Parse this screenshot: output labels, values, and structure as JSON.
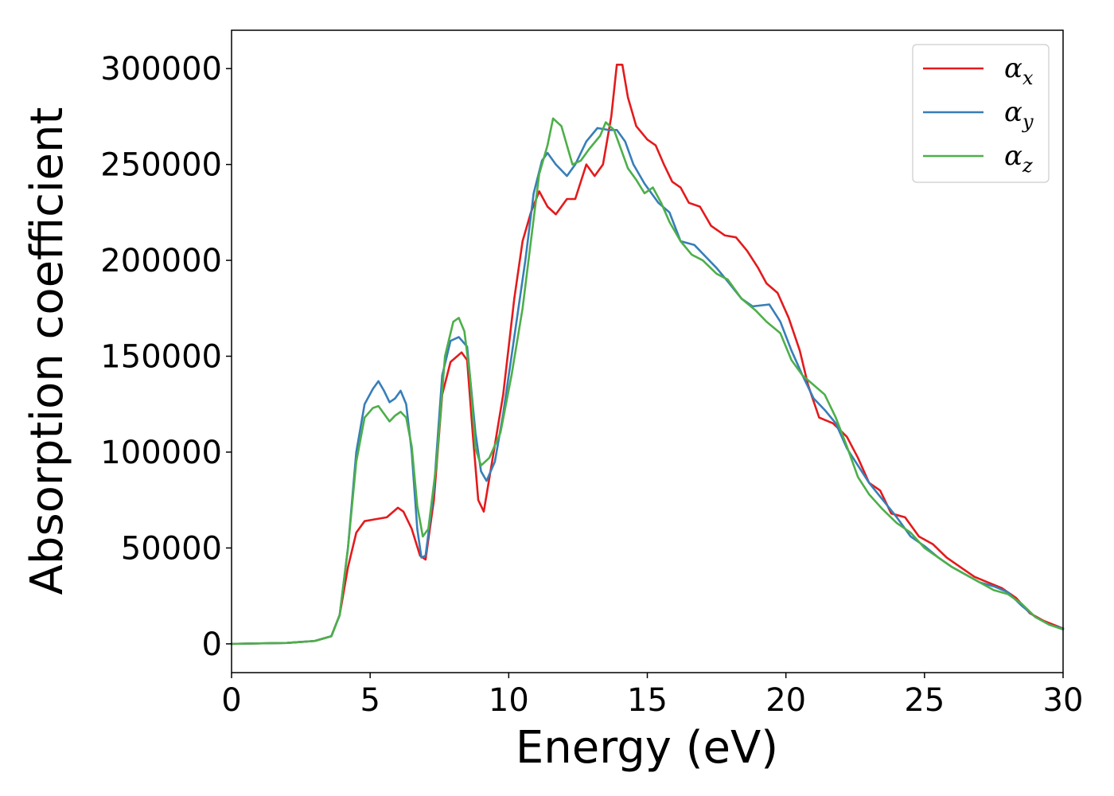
{
  "chart_data": {
    "type": "line",
    "title": "",
    "xlabel": "Energy (eV)",
    "ylabel": "Absorption coefficient",
    "xlim": [
      0,
      30
    ],
    "ylim": [
      -15000,
      320000
    ],
    "xticks": [
      "0",
      "5",
      "10",
      "15",
      "20",
      "25",
      "30"
    ],
    "yticks": [
      "0",
      "50000",
      "100000",
      "150000",
      "200000",
      "250000",
      "300000"
    ],
    "grid": false,
    "legend_position": "top-right",
    "series": [
      {
        "name": "α",
        "subscript": "x",
        "color": "#e41a1c",
        "points": [
          [
            0,
            0
          ],
          [
            2,
            500
          ],
          [
            3,
            1500
          ],
          [
            3.6,
            4000
          ],
          [
            3.9,
            15000
          ],
          [
            4.2,
            40000
          ],
          [
            4.5,
            58000
          ],
          [
            4.8,
            64000
          ],
          [
            5.2,
            65000
          ],
          [
            5.6,
            66000
          ],
          [
            6.0,
            71000
          ],
          [
            6.2,
            69000
          ],
          [
            6.5,
            60000
          ],
          [
            6.8,
            46000
          ],
          [
            7.0,
            44000
          ],
          [
            7.3,
            75000
          ],
          [
            7.6,
            130000
          ],
          [
            7.9,
            147000
          ],
          [
            8.3,
            152000
          ],
          [
            8.5,
            148000
          ],
          [
            8.7,
            110000
          ],
          [
            8.9,
            75000
          ],
          [
            9.1,
            69000
          ],
          [
            9.4,
            95000
          ],
          [
            9.8,
            130000
          ],
          [
            10.2,
            180000
          ],
          [
            10.5,
            210000
          ],
          [
            10.8,
            225000
          ],
          [
            11.1,
            236000
          ],
          [
            11.4,
            228000
          ],
          [
            11.7,
            224000
          ],
          [
            12.1,
            232000
          ],
          [
            12.4,
            232000
          ],
          [
            12.8,
            250000
          ],
          [
            13.1,
            244000
          ],
          [
            13.4,
            250000
          ],
          [
            13.7,
            275000
          ],
          [
            13.9,
            302000
          ],
          [
            14.1,
            302000
          ],
          [
            14.3,
            285000
          ],
          [
            14.6,
            270000
          ],
          [
            15.0,
            263000
          ],
          [
            15.3,
            260000
          ],
          [
            15.6,
            250000
          ],
          [
            15.9,
            241000
          ],
          [
            16.2,
            238000
          ],
          [
            16.5,
            230000
          ],
          [
            16.9,
            228000
          ],
          [
            17.3,
            218000
          ],
          [
            17.8,
            213000
          ],
          [
            18.2,
            212000
          ],
          [
            18.6,
            205000
          ],
          [
            19.0,
            196000
          ],
          [
            19.3,
            188000
          ],
          [
            19.7,
            183000
          ],
          [
            20.1,
            170000
          ],
          [
            20.5,
            153000
          ],
          [
            20.8,
            135000
          ],
          [
            21.2,
            118000
          ],
          [
            21.7,
            115000
          ],
          [
            22.2,
            108000
          ],
          [
            22.6,
            97000
          ],
          [
            23.0,
            84000
          ],
          [
            23.4,
            80000
          ],
          [
            23.8,
            68000
          ],
          [
            24.3,
            66000
          ],
          [
            24.8,
            56000
          ],
          [
            25.3,
            52000
          ],
          [
            25.8,
            45000
          ],
          [
            26.3,
            40000
          ],
          [
            26.8,
            35000
          ],
          [
            27.3,
            32000
          ],
          [
            27.8,
            29000
          ],
          [
            28.3,
            24000
          ],
          [
            28.8,
            16000
          ],
          [
            29.3,
            12000
          ],
          [
            30,
            8000
          ]
        ]
      },
      {
        "name": "α",
        "subscript": "y",
        "color": "#377eb8",
        "points": [
          [
            0,
            0
          ],
          [
            2,
            500
          ],
          [
            3,
            1500
          ],
          [
            3.6,
            4000
          ],
          [
            3.9,
            15000
          ],
          [
            4.2,
            50000
          ],
          [
            4.5,
            100000
          ],
          [
            4.8,
            125000
          ],
          [
            5.1,
            133000
          ],
          [
            5.3,
            137000
          ],
          [
            5.5,
            132000
          ],
          [
            5.7,
            126000
          ],
          [
            5.9,
            128000
          ],
          [
            6.1,
            132000
          ],
          [
            6.3,
            125000
          ],
          [
            6.5,
            100000
          ],
          [
            6.7,
            60000
          ],
          [
            6.85,
            45000
          ],
          [
            7.0,
            46000
          ],
          [
            7.3,
            80000
          ],
          [
            7.6,
            140000
          ],
          [
            7.9,
            158000
          ],
          [
            8.2,
            160000
          ],
          [
            8.5,
            155000
          ],
          [
            8.8,
            110000
          ],
          [
            9.0,
            90000
          ],
          [
            9.2,
            85000
          ],
          [
            9.5,
            95000
          ],
          [
            9.8,
            120000
          ],
          [
            10.2,
            160000
          ],
          [
            10.6,
            200000
          ],
          [
            10.9,
            235000
          ],
          [
            11.2,
            252000
          ],
          [
            11.4,
            256000
          ],
          [
            11.7,
            250000
          ],
          [
            12.1,
            244000
          ],
          [
            12.4,
            250000
          ],
          [
            12.8,
            262000
          ],
          [
            13.2,
            269000
          ],
          [
            13.6,
            268000
          ],
          [
            13.9,
            268000
          ],
          [
            14.2,
            262000
          ],
          [
            14.5,
            250000
          ],
          [
            14.9,
            240000
          ],
          [
            15.4,
            230000
          ],
          [
            15.8,
            225000
          ],
          [
            16.2,
            210000
          ],
          [
            16.7,
            208000
          ],
          [
            17.1,
            202000
          ],
          [
            17.5,
            196000
          ],
          [
            17.9,
            189000
          ],
          [
            18.4,
            180000
          ],
          [
            18.8,
            176000
          ],
          [
            19.4,
            177000
          ],
          [
            19.8,
            168000
          ],
          [
            20.2,
            153000
          ],
          [
            20.6,
            140000
          ],
          [
            21.0,
            128000
          ],
          [
            21.4,
            122000
          ],
          [
            21.8,
            115000
          ],
          [
            22.2,
            102000
          ],
          [
            22.6,
            93000
          ],
          [
            23.0,
            84000
          ],
          [
            23.5,
            75000
          ],
          [
            24.0,
            66000
          ],
          [
            24.5,
            56000
          ],
          [
            25.0,
            51000
          ],
          [
            25.5,
            45000
          ],
          [
            26.0,
            40000
          ],
          [
            26.5,
            36000
          ],
          [
            27.0,
            32000
          ],
          [
            27.5,
            30000
          ],
          [
            28.0,
            27000
          ],
          [
            28.5,
            20000
          ],
          [
            29.0,
            14000
          ],
          [
            29.5,
            10000
          ],
          [
            30,
            8000
          ]
        ]
      },
      {
        "name": "α",
        "subscript": "z",
        "color": "#4daf4a",
        "points": [
          [
            0,
            0
          ],
          [
            2,
            500
          ],
          [
            3,
            1500
          ],
          [
            3.6,
            4000
          ],
          [
            3.9,
            15000
          ],
          [
            4.2,
            50000
          ],
          [
            4.5,
            95000
          ],
          [
            4.8,
            118000
          ],
          [
            5.1,
            123000
          ],
          [
            5.3,
            124000
          ],
          [
            5.5,
            120000
          ],
          [
            5.7,
            116000
          ],
          [
            5.9,
            119000
          ],
          [
            6.1,
            121000
          ],
          [
            6.3,
            118000
          ],
          [
            6.5,
            103000
          ],
          [
            6.7,
            72000
          ],
          [
            6.9,
            56000
          ],
          [
            7.1,
            60000
          ],
          [
            7.4,
            95000
          ],
          [
            7.7,
            150000
          ],
          [
            8.0,
            168000
          ],
          [
            8.2,
            170000
          ],
          [
            8.4,
            163000
          ],
          [
            8.6,
            140000
          ],
          [
            8.8,
            102000
          ],
          [
            9.0,
            93000
          ],
          [
            9.3,
            97000
          ],
          [
            9.7,
            110000
          ],
          [
            10.1,
            140000
          ],
          [
            10.5,
            175000
          ],
          [
            10.8,
            210000
          ],
          [
            11.1,
            245000
          ],
          [
            11.4,
            260000
          ],
          [
            11.6,
            274000
          ],
          [
            11.9,
            270000
          ],
          [
            12.1,
            260000
          ],
          [
            12.3,
            250000
          ],
          [
            12.6,
            252000
          ],
          [
            12.9,
            258000
          ],
          [
            13.3,
            265000
          ],
          [
            13.5,
            272000
          ],
          [
            13.8,
            268000
          ],
          [
            14.0,
            260000
          ],
          [
            14.3,
            248000
          ],
          [
            14.6,
            242000
          ],
          [
            14.9,
            235000
          ],
          [
            15.2,
            238000
          ],
          [
            15.5,
            230000
          ],
          [
            15.8,
            220000
          ],
          [
            16.2,
            210000
          ],
          [
            16.6,
            203000
          ],
          [
            17.0,
            200000
          ],
          [
            17.5,
            193000
          ],
          [
            17.9,
            190000
          ],
          [
            18.4,
            180000
          ],
          [
            18.9,
            174000
          ],
          [
            19.3,
            168000
          ],
          [
            19.8,
            162000
          ],
          [
            20.2,
            148000
          ],
          [
            20.6,
            140000
          ],
          [
            21.0,
            135000
          ],
          [
            21.4,
            130000
          ],
          [
            21.8,
            118000
          ],
          [
            22.2,
            103000
          ],
          [
            22.6,
            87000
          ],
          [
            23.0,
            78000
          ],
          [
            23.5,
            70000
          ],
          [
            24.0,
            63000
          ],
          [
            24.5,
            58000
          ],
          [
            25.0,
            50000
          ],
          [
            25.5,
            45000
          ],
          [
            26.0,
            40000
          ],
          [
            26.5,
            36000
          ],
          [
            27.0,
            32000
          ],
          [
            27.5,
            28000
          ],
          [
            28.0,
            26000
          ],
          [
            28.5,
            21000
          ],
          [
            29.0,
            14000
          ],
          [
            29.5,
            10000
          ],
          [
            30,
            7500
          ]
        ]
      }
    ]
  }
}
